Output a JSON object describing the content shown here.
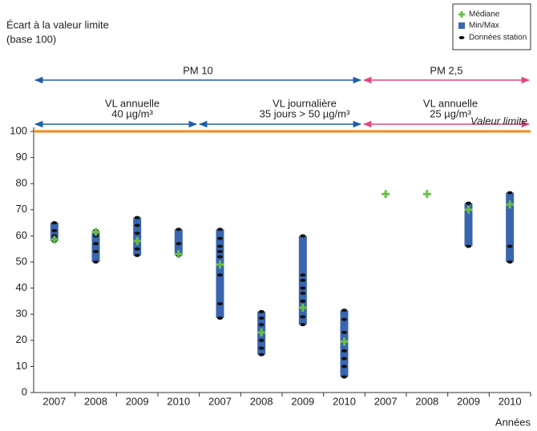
{
  "chart_data": {
    "type": "range",
    "title": "Écart à la valeur limite",
    "subtitle": "(base 100)",
    "x_label": "Années",
    "categories": [
      "2007",
      "2008",
      "2009",
      "2010",
      "2007",
      "2008",
      "2009",
      "2010",
      "2007",
      "2008",
      "2009",
      "2010"
    ],
    "min": [
      58,
      50,
      52.5,
      52.5,
      28.5,
      14.5,
      26,
      6,
      null,
      null,
      56,
      50
    ],
    "max": [
      65,
      62,
      67,
      62.5,
      62.5,
      31,
      60,
      31.5,
      null,
      null,
      72.5,
      76.5
    ],
    "median": [
      58.5,
      61.5,
      58,
      53,
      49,
      23,
      32.5,
      19.5,
      76,
      76,
      70,
      72
    ],
    "stations": [
      [
        65,
        62,
        60,
        58
      ],
      [
        62,
        60,
        57,
        54,
        50
      ],
      [
        67,
        64,
        61,
        58,
        55,
        52.5
      ],
      [
        62.5,
        57,
        53,
        52.5
      ],
      [
        62.5,
        59,
        56,
        54,
        52,
        49,
        45,
        34,
        28.5
      ],
      [
        31,
        28.5,
        26,
        23,
        20,
        17,
        14.5
      ],
      [
        60,
        45,
        43,
        40,
        38,
        35,
        32.5,
        29,
        26
      ],
      [
        31.5,
        28,
        23,
        19.5,
        16,
        13,
        10,
        6
      ],
      [],
      [],
      [
        72.5,
        70,
        56
      ],
      [
        76.5,
        72,
        56,
        50
      ]
    ],
    "legend": [
      "Médiane",
      "Min/Max",
      "Données station"
    ],
    "colors": {
      "median": "#6cc04a",
      "range": "#3a66b0",
      "station": "#111111",
      "limit": "#f08a1c"
    },
    "limit": {
      "label": "Valeur limite",
      "value": 100
    },
    "groups": [
      {
        "label": "PM 10",
        "color": "#1f5ea8"
      },
      {
        "label": "PM 2,5",
        "color": "#e0497e"
      }
    ],
    "sub_groups": [
      {
        "line1": "VL annuelle",
        "line2": "40 µg/m³"
      },
      {
        "line1": "VL journalière",
        "line2": "35 jours > 50 µg/m³"
      },
      {
        "line1": "VL annuelle",
        "line2": "25 µg/m³"
      }
    ],
    "ylim": [
      0,
      100
    ],
    "yticks": [
      0,
      10,
      20,
      30,
      40,
      50,
      60,
      70,
      80,
      90,
      100
    ]
  }
}
